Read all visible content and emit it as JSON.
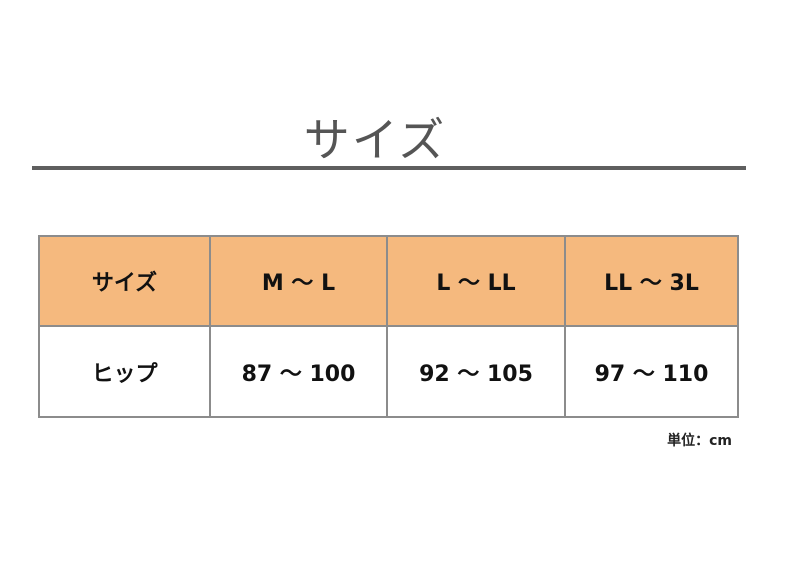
{
  "title": "サイズ",
  "table": {
    "header": [
      "サイズ",
      "M ～ L",
      "L ～ LL",
      "LL ～ 3L"
    ],
    "rows": [
      [
        "ヒップ",
        "87 ～ 100",
        "92 ～ 105",
        "97 ～ 110"
      ]
    ]
  },
  "unit_note": "単位：cm",
  "colors": {
    "header_bg": "#f5b97e",
    "rule": "#5f5f5f",
    "border": "#8c8c8c"
  }
}
